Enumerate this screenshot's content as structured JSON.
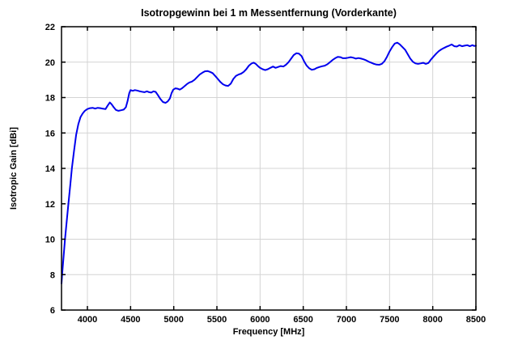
{
  "chart_data": {
    "type": "line",
    "title": "Isotropgewinn bei 1 m Messentfernung (Vorderkante)",
    "xlabel": "Frequency [MHz]",
    "ylabel": "Isotropic Gain [dBi]",
    "xlim": [
      3700,
      8500
    ],
    "ylim": [
      6,
      22
    ],
    "xticks": [
      4000,
      4500,
      5000,
      5500,
      6000,
      6500,
      7000,
      7500,
      8000,
      8500
    ],
    "yticks": [
      6,
      8,
      10,
      12,
      14,
      16,
      18,
      20,
      22
    ],
    "grid": true,
    "legend": null,
    "colors": {
      "line": "#0000ee",
      "grid": "#d4d4d4",
      "axis": "#000000",
      "background": "#ffffff"
    },
    "series": [
      {
        "name": "Isotropic Gain",
        "points": [
          [
            3700,
            7.5
          ],
          [
            3710,
            8.2
          ],
          [
            3725,
            9.1
          ],
          [
            3740,
            10.0
          ],
          [
            3760,
            11.0
          ],
          [
            3780,
            12.0
          ],
          [
            3800,
            13.0
          ],
          [
            3820,
            14.0
          ],
          [
            3845,
            15.0
          ],
          [
            3870,
            15.9
          ],
          [
            3895,
            16.5
          ],
          [
            3920,
            16.9
          ],
          [
            3945,
            17.1
          ],
          [
            3970,
            17.25
          ],
          [
            4000,
            17.35
          ],
          [
            4030,
            17.4
          ],
          [
            4060,
            17.42
          ],
          [
            4090,
            17.38
          ],
          [
            4120,
            17.42
          ],
          [
            4150,
            17.4
          ],
          [
            4180,
            17.37
          ],
          [
            4210,
            17.35
          ],
          [
            4235,
            17.55
          ],
          [
            4260,
            17.72
          ],
          [
            4280,
            17.62
          ],
          [
            4305,
            17.45
          ],
          [
            4330,
            17.3
          ],
          [
            4360,
            17.25
          ],
          [
            4390,
            17.28
          ],
          [
            4420,
            17.32
          ],
          [
            4445,
            17.45
          ],
          [
            4465,
            17.8
          ],
          [
            4485,
            18.25
          ],
          [
            4500,
            18.42
          ],
          [
            4525,
            18.38
          ],
          [
            4550,
            18.42
          ],
          [
            4575,
            18.4
          ],
          [
            4600,
            18.36
          ],
          [
            4630,
            18.33
          ],
          [
            4660,
            18.3
          ],
          [
            4690,
            18.35
          ],
          [
            4715,
            18.3
          ],
          [
            4740,
            18.28
          ],
          [
            4765,
            18.35
          ],
          [
            4790,
            18.32
          ],
          [
            4815,
            18.15
          ],
          [
            4845,
            17.92
          ],
          [
            4875,
            17.75
          ],
          [
            4905,
            17.7
          ],
          [
            4930,
            17.78
          ],
          [
            4955,
            17.95
          ],
          [
            4975,
            18.25
          ],
          [
            4995,
            18.45
          ],
          [
            5020,
            18.52
          ],
          [
            5045,
            18.5
          ],
          [
            5070,
            18.45
          ],
          [
            5095,
            18.52
          ],
          [
            5120,
            18.62
          ],
          [
            5150,
            18.75
          ],
          [
            5180,
            18.85
          ],
          [
            5210,
            18.9
          ],
          [
            5240,
            19.0
          ],
          [
            5270,
            19.15
          ],
          [
            5300,
            19.3
          ],
          [
            5330,
            19.4
          ],
          [
            5360,
            19.48
          ],
          [
            5390,
            19.5
          ],
          [
            5420,
            19.45
          ],
          [
            5450,
            19.38
          ],
          [
            5480,
            19.22
          ],
          [
            5510,
            19.05
          ],
          [
            5540,
            18.88
          ],
          [
            5570,
            18.75
          ],
          [
            5600,
            18.68
          ],
          [
            5630,
            18.66
          ],
          [
            5660,
            18.78
          ],
          [
            5690,
            19.05
          ],
          [
            5720,
            19.22
          ],
          [
            5750,
            19.3
          ],
          [
            5780,
            19.35
          ],
          [
            5810,
            19.45
          ],
          [
            5840,
            19.6
          ],
          [
            5870,
            19.8
          ],
          [
            5900,
            19.92
          ],
          [
            5925,
            19.97
          ],
          [
            5950,
            19.9
          ],
          [
            5975,
            19.78
          ],
          [
            6000,
            19.68
          ],
          [
            6030,
            19.6
          ],
          [
            6060,
            19.55
          ],
          [
            6090,
            19.6
          ],
          [
            6120,
            19.68
          ],
          [
            6150,
            19.75
          ],
          [
            6180,
            19.68
          ],
          [
            6210,
            19.73
          ],
          [
            6240,
            19.78
          ],
          [
            6270,
            19.75
          ],
          [
            6300,
            19.85
          ],
          [
            6330,
            20.0
          ],
          [
            6360,
            20.2
          ],
          [
            6390,
            20.4
          ],
          [
            6420,
            20.5
          ],
          [
            6450,
            20.48
          ],
          [
            6480,
            20.35
          ],
          [
            6510,
            20.05
          ],
          [
            6540,
            19.8
          ],
          [
            6570,
            19.65
          ],
          [
            6600,
            19.57
          ],
          [
            6630,
            19.6
          ],
          [
            6660,
            19.68
          ],
          [
            6690,
            19.73
          ],
          [
            6720,
            19.77
          ],
          [
            6750,
            19.8
          ],
          [
            6780,
            19.88
          ],
          [
            6810,
            20.0
          ],
          [
            6840,
            20.12
          ],
          [
            6870,
            20.22
          ],
          [
            6900,
            20.3
          ],
          [
            6930,
            20.28
          ],
          [
            6960,
            20.22
          ],
          [
            6990,
            20.22
          ],
          [
            7020,
            20.25
          ],
          [
            7050,
            20.28
          ],
          [
            7080,
            20.25
          ],
          [
            7110,
            20.2
          ],
          [
            7140,
            20.23
          ],
          [
            7170,
            20.2
          ],
          [
            7200,
            20.16
          ],
          [
            7230,
            20.1
          ],
          [
            7260,
            20.02
          ],
          [
            7290,
            19.96
          ],
          [
            7320,
            19.9
          ],
          [
            7350,
            19.86
          ],
          [
            7380,
            19.85
          ],
          [
            7410,
            19.9
          ],
          [
            7440,
            20.05
          ],
          [
            7470,
            20.3
          ],
          [
            7500,
            20.6
          ],
          [
            7530,
            20.85
          ],
          [
            7560,
            21.05
          ],
          [
            7590,
            21.1
          ],
          [
            7620,
            21.0
          ],
          [
            7650,
            20.85
          ],
          [
            7680,
            20.7
          ],
          [
            7710,
            20.45
          ],
          [
            7740,
            20.2
          ],
          [
            7770,
            20.02
          ],
          [
            7800,
            19.93
          ],
          [
            7830,
            19.9
          ],
          [
            7860,
            19.93
          ],
          [
            7890,
            19.96
          ],
          [
            7920,
            19.9
          ],
          [
            7950,
            19.95
          ],
          [
            7980,
            20.15
          ],
          [
            8010,
            20.32
          ],
          [
            8040,
            20.48
          ],
          [
            8070,
            20.62
          ],
          [
            8100,
            20.72
          ],
          [
            8130,
            20.8
          ],
          [
            8160,
            20.87
          ],
          [
            8190,
            20.93
          ],
          [
            8220,
            21.0
          ],
          [
            8250,
            20.9
          ],
          [
            8280,
            20.88
          ],
          [
            8310,
            20.96
          ],
          [
            8340,
            20.9
          ],
          [
            8370,
            20.93
          ],
          [
            8400,
            20.96
          ],
          [
            8430,
            20.9
          ],
          [
            8460,
            20.96
          ],
          [
            8480,
            20.91
          ],
          [
            8500,
            20.93
          ]
        ]
      }
    ]
  }
}
